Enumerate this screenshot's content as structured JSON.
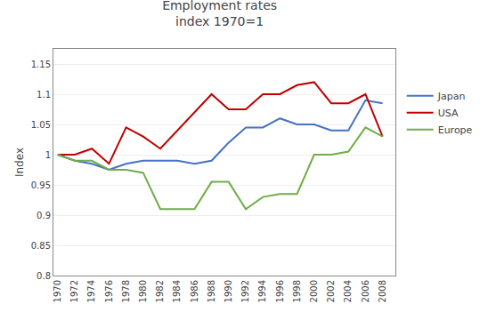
{
  "chart_data": {
    "type": "line",
    "title": "Employment rates\nindex 1970=1",
    "ylabel": "Index",
    "x": [
      1970,
      1972,
      1974,
      1976,
      1978,
      1980,
      1982,
      1984,
      1986,
      1988,
      1990,
      1992,
      1994,
      1996,
      1998,
      2000,
      2002,
      2004,
      2006,
      2008
    ],
    "series": [
      {
        "name": "Japan",
        "color": "#4472C4",
        "values": [
          1.0,
          0.99,
          0.985,
          0.975,
          0.985,
          0.99,
          0.99,
          0.99,
          0.985,
          0.99,
          1.02,
          1.045,
          1.045,
          1.06,
          1.05,
          1.05,
          1.04,
          1.04,
          1.09,
          1.085
        ]
      },
      {
        "name": "USA",
        "color": "#C00000",
        "values": [
          1.0,
          1.0,
          1.01,
          0.985,
          1.045,
          1.03,
          1.01,
          1.04,
          1.07,
          1.1,
          1.075,
          1.075,
          1.1,
          1.1,
          1.115,
          1.12,
          1.085,
          1.085,
          1.1,
          1.03
        ]
      },
      {
        "name": "Europe",
        "color": "#70AD47",
        "values": [
          1.0,
          0.99,
          0.99,
          0.975,
          0.975,
          0.97,
          0.91,
          0.91,
          0.91,
          0.955,
          0.955,
          0.91,
          0.93,
          0.935,
          0.935,
          1.0,
          1.0,
          1.005,
          1.045,
          1.03
        ]
      }
    ],
    "xlim": [
      1969.5,
      2009.5
    ],
    "xticks": [
      1970,
      1972,
      1974,
      1976,
      1978,
      1980,
      1982,
      1984,
      1986,
      1988,
      1990,
      1992,
      1994,
      1996,
      1998,
      2000,
      2002,
      2004,
      2006,
      2008
    ],
    "ylim": [
      0.8,
      1.175
    ],
    "yticks": [
      0.8,
      0.85,
      0.9,
      0.95,
      1,
      1.05,
      1.1,
      1.15
    ],
    "grid": "y",
    "legend": "right"
  }
}
